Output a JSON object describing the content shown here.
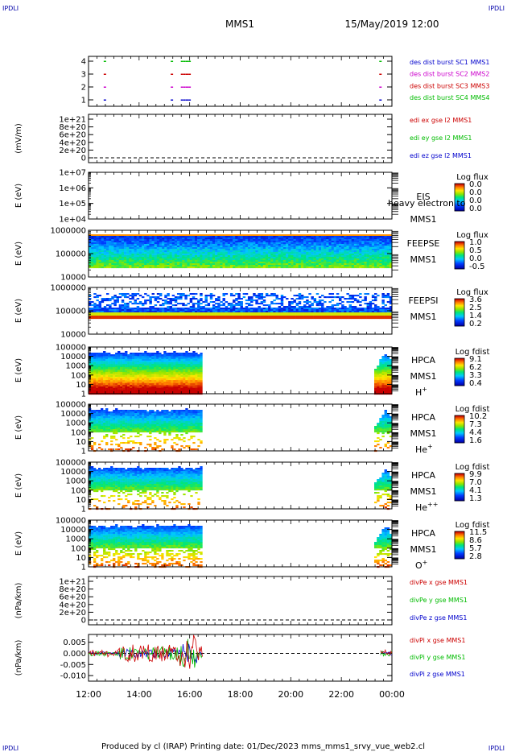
{
  "corner": {
    "tl": "IPDLI",
    "tr": "IPDLI",
    "bl": "IPDLI",
    "br": "IPDLI"
  },
  "header": {
    "spacecraft": "MMS1",
    "datetime": "15/May/2019 12:00"
  },
  "footer": {
    "text": "Produced by cl (IRAP)   Printing date: 01/Dec/2023   mms_mms1_srvy_vue_web2.cl"
  },
  "chart_data": [
    {
      "type": "scatter",
      "id": "burst",
      "yticks": [
        "4",
        "3",
        "2",
        "1"
      ],
      "legend": [
        {
          "label": "des dist burst SC1 MMS1",
          "color": "#0000cc"
        },
        {
          "label": "des dist burst SC2 MMS2",
          "color": "#cc00cc"
        },
        {
          "label": "des dist burst SC3 MMS3",
          "color": "#cc0000"
        },
        {
          "label": "des dist burst SC4 MMS4",
          "color": "#00bb00"
        }
      ],
      "bursts_hours": [
        12.6,
        15.25,
        15.65,
        15.75,
        15.85,
        15.95,
        23.5
      ]
    },
    {
      "type": "line",
      "id": "edi",
      "ylabel": "(mV/m)",
      "yticks": [
        "1e+21",
        "8e+20",
        "6e+20",
        "4e+20",
        "2e+20",
        "0"
      ],
      "legend": [
        {
          "label": "edi ex gse l2 MMS1",
          "color": "#cc0000"
        },
        {
          "label": "edi ey gse l2 MMS1",
          "color": "#00bb00"
        },
        {
          "label": "edi ez gse l2 MMS1",
          "color": "#0000cc"
        }
      ]
    },
    {
      "type": "heatmap",
      "id": "eis",
      "ylabel": "E (eV)",
      "yticks": [
        "1e+07",
        "1e+06",
        "1e+05",
        "1e+04"
      ],
      "instrument": "EIS",
      "species": "heavy electron to",
      "sc": "MMS1",
      "cbar_title": "Log flux",
      "cbar_ticks": [
        "0.0",
        "0.0",
        "0.0",
        "0.0"
      ]
    },
    {
      "type": "heatmap",
      "id": "feepse",
      "ylabel": "E (eV)",
      "yticks": [
        "1000000",
        "100000",
        "10000"
      ],
      "instrument": "FEEPSE",
      "sc": "MMS1",
      "cbar_title": "Log flux",
      "cbar_ticks": [
        "1.0",
        "0.5",
        "0.0",
        "-0.5"
      ]
    },
    {
      "type": "heatmap",
      "id": "feepsi",
      "ylabel": "E (eV)",
      "yticks": [
        "1000000",
        "100000",
        "10000"
      ],
      "instrument": "FEEPSI",
      "sc": "MMS1",
      "cbar_title": "Log flux",
      "cbar_ticks": [
        "3.6",
        "2.5",
        "1.4",
        "0.2"
      ]
    },
    {
      "type": "heatmap",
      "id": "hpca_h",
      "ylabel": "E (eV)",
      "yticks": [
        "100000",
        "10000",
        "1000",
        "100",
        "10",
        "1"
      ],
      "instrument": "HPCA",
      "sc": "MMS1",
      "ion": "H",
      "ion_sup": "+",
      "cbar_title": "Log fdist",
      "cbar_ticks": [
        "9.1",
        "6.2",
        "3.3",
        "0.4"
      ]
    },
    {
      "type": "heatmap",
      "id": "hpca_he",
      "ylabel": "E (eV)",
      "yticks": [
        "100000",
        "10000",
        "1000",
        "100",
        "10",
        "1"
      ],
      "instrument": "HPCA",
      "sc": "MMS1",
      "ion": "He",
      "ion_sup": "+",
      "cbar_title": "Log fdist",
      "cbar_ticks": [
        "10.2",
        "7.3",
        "4.4",
        "1.6"
      ]
    },
    {
      "type": "heatmap",
      "id": "hpca_hepp",
      "ylabel": "E (eV)",
      "yticks": [
        "100000",
        "10000",
        "1000",
        "100",
        "10",
        "1"
      ],
      "instrument": "HPCA",
      "sc": "MMS1",
      "ion": "He",
      "ion_sup": "++",
      "cbar_title": "Log fdist",
      "cbar_ticks": [
        "9.9",
        "7.0",
        "4.1",
        "1.3"
      ]
    },
    {
      "type": "heatmap",
      "id": "hpca_o",
      "ylabel": "E (eV)",
      "yticks": [
        "100000",
        "10000",
        "1000",
        "100",
        "10",
        "1"
      ],
      "instrument": "HPCA",
      "sc": "MMS1",
      "ion": "O",
      "ion_sup": "+",
      "cbar_title": "Log fdist",
      "cbar_ticks": [
        "11.5",
        "8.6",
        "5.7",
        "2.8"
      ]
    },
    {
      "type": "line",
      "id": "divpe",
      "ylabel": "(nPa/km)",
      "yticks": [
        "1e+21",
        "8e+20",
        "6e+20",
        "4e+20",
        "2e+20",
        "0"
      ],
      "legend": [
        {
          "label": "divPe x gse MMS1",
          "color": "#cc0000"
        },
        {
          "label": "divPe y gse MMS1",
          "color": "#00bb00"
        },
        {
          "label": "divPe z gse MMS1",
          "color": "#0000cc"
        }
      ]
    },
    {
      "type": "line",
      "id": "divpi",
      "ylabel": "(nPa/km)",
      "yticks": [
        "0.005",
        "0.000",
        "-0.005",
        "-0.010"
      ],
      "ylim": [
        -0.0125,
        0.0085
      ],
      "legend": [
        {
          "label": "divPi x gse MMS1",
          "color": "#cc0000"
        },
        {
          "label": "divPi y gse MMS1",
          "color": "#00bb00"
        },
        {
          "label": "divPi z gse MMS1",
          "color": "#0000cc"
        }
      ]
    }
  ],
  "xaxis": {
    "ticks": [
      "12:00",
      "14:00",
      "16:00",
      "18:00",
      "20:00",
      "22:00",
      "00:00"
    ],
    "range_hours": [
      12,
      24
    ],
    "data_gap_hours": [
      16.5,
      23.3
    ]
  }
}
